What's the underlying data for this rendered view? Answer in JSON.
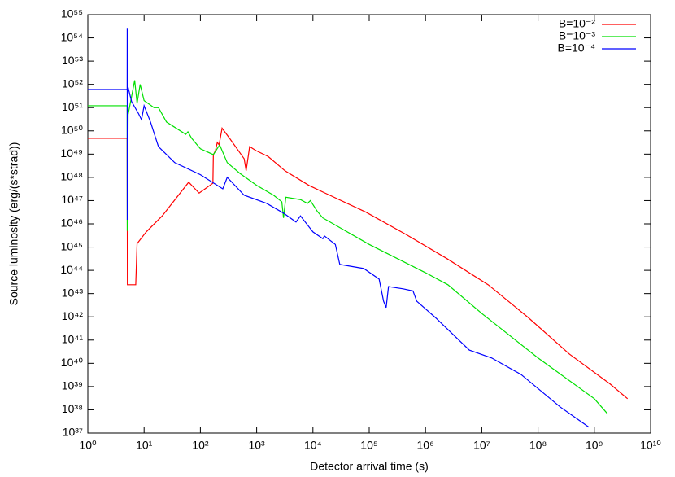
{
  "chart_data": {
    "type": "line",
    "x_label": "Detector arrival time (s)",
    "y_label": "Source luminosity (erg/(s*strad))",
    "log_x": true,
    "log_y": true,
    "legend": "top-right",
    "xlim": [
      1,
      10000000000
    ],
    "ylim": [
      1e+37,
      1e+55
    ],
    "xticks": [
      {
        "value": 1,
        "label": "10⁰"
      },
      {
        "value": 10,
        "label": "10¹"
      },
      {
        "value": 100,
        "label": "10²"
      },
      {
        "value": 1000,
        "label": "10³"
      },
      {
        "value": 10000,
        "label": "10⁴"
      },
      {
        "value": 100000,
        "label": "10⁵"
      },
      {
        "value": 1000000,
        "label": "10⁶"
      },
      {
        "value": 10000000,
        "label": "10⁷"
      },
      {
        "value": 100000000,
        "label": "10⁸"
      },
      {
        "value": 1000000000,
        "label": "10⁹"
      },
      {
        "value": 10000000000,
        "label": "10¹⁰"
      }
    ],
    "yticks": [
      {
        "value": 1e+37,
        "label": "10³⁷"
      },
      {
        "value": 1e+38,
        "label": "10³⁸"
      },
      {
        "value": 1e+39,
        "label": "10³⁹"
      },
      {
        "value": 1e+40,
        "label": "10⁴⁰"
      },
      {
        "value": 1e+41,
        "label": "10⁴¹"
      },
      {
        "value": 1e+42,
        "label": "10⁴²"
      },
      {
        "value": 1e+43,
        "label": "10⁴³"
      },
      {
        "value": 1e+44,
        "label": "10⁴⁴"
      },
      {
        "value": 1e+45,
        "label": "10⁴⁵"
      },
      {
        "value": 1e+46,
        "label": "10⁴⁶"
      },
      {
        "value": 1e+47,
        "label": "10⁴⁷"
      },
      {
        "value": 1e+48,
        "label": "10⁴⁸"
      },
      {
        "value": 1e+49,
        "label": "10⁴⁹"
      },
      {
        "value": 1e+50,
        "label": "10⁵⁰"
      },
      {
        "value": 1e+51,
        "label": "10⁵¹"
      },
      {
        "value": 1e+52,
        "label": "10⁵²"
      },
      {
        "value": 1e+53,
        "label": "10⁵³"
      },
      {
        "value": 1e+54,
        "label": "10⁵⁴"
      },
      {
        "value": 1e+55,
        "label": "10⁵⁵"
      }
    ],
    "series": [
      {
        "name": "B=10⁻²",
        "color": "#ff0000",
        "x": [
          1,
          5,
          5.05,
          7.1,
          7.5,
          10.9,
          21,
          62,
          95,
          167,
          170,
          185,
          200,
          215,
          243,
          330,
          600,
          650,
          750,
          980,
          1600,
          3200,
          8500,
          16500,
          87000,
          450000,
          2400000,
          13000000,
          67000000,
          360000000,
          1900000000,
          3900000000
        ],
        "values": [
          4.8e+49,
          4.8e+49,
          2.4e+43,
          2.4e+43,
          1.4e+45,
          4.5e+45,
          2.2e+46,
          6.2e+47,
          2.1e+47,
          5.6e+47,
          9.5e+48,
          1.4e+49,
          3.2e+49,
          2.5e+49,
          1.3e+50,
          4.8e+49,
          6.3e+48,
          1.9e+48,
          2.1e+49,
          1.4e+49,
          7.9e+48,
          1.9e+48,
          4.5e+47,
          2.1e+47,
          3.2e+46,
          3.5e+45,
          3.2e+44,
          2.4e+43,
          9.3e+41,
          2.5e+40,
          1.3e+39,
          3e+38
        ]
      },
      {
        "name": "B=10⁻³",
        "color": "#00e000",
        "x": [
          1,
          5,
          5.02,
          5.05,
          5.2,
          6.8,
          7.5,
          8.5,
          10,
          15,
          18,
          25,
          55,
          60,
          70,
          100,
          170,
          220,
          300,
          500,
          1000,
          2000,
          2800,
          3000,
          3300,
          6000,
          8000,
          9000,
          12000,
          15000,
          100000,
          1000000,
          2500000,
          10000000,
          100000000,
          1000000000,
          1700000000
        ],
        "values": [
          1.2e+51,
          1.2e+51,
          5e+45,
          1.5e+46,
          5e+50,
          1.5e+52,
          1.5e+51,
          1e+52,
          2e+51,
          1e+51,
          1e+51,
          2.4e+50,
          7.1e+49,
          9.1e+49,
          4.8e+49,
          1.7e+49,
          9.5e+48,
          2.5e+49,
          4.3e+48,
          1.5e+48,
          4.5e+47,
          1.7e+47,
          8.9e+46,
          1.8e+46,
          1.4e+47,
          1.1e+47,
          7.6e+46,
          1e+47,
          3.4e+46,
          1.8e+46,
          1.3e+45,
          7.9e+43,
          2.4e+43,
          1.4e+42,
          1.7e+40,
          3e+38,
          6.9e+37
        ]
      },
      {
        "name": "B=10⁻⁴",
        "color": "#0000ff",
        "x": [
          1,
          5,
          5.01,
          5.03,
          5.1,
          6,
          8,
          9,
          10,
          13,
          18,
          35,
          100,
          250,
          300,
          600,
          1500,
          3000,
          5000,
          6000,
          10000,
          15000,
          16000,
          25000,
          30000,
          80000,
          150000,
          180000,
          200000,
          220000,
          400000,
          600000,
          700000,
          1500000,
          6000000,
          15000000,
          50000000,
          250000000,
          800000000
        ],
        "values": [
          6e+51,
          6e+51,
          2.5e+54,
          1.5e+46,
          8.9e+51,
          1.8e+51,
          5.4e+50,
          3e+50,
          1.2e+51,
          2.4e+50,
          2.1e+49,
          4.3e+48,
          1.3e+48,
          3.2e+47,
          1e+48,
          1.7e+47,
          7.6e+46,
          2.9e+46,
          1.2e+46,
          2.2e+46,
          4.5e+45,
          2.3e+45,
          3e+45,
          1.3e+45,
          1.8e+44,
          1.2e+44,
          4.2e+43,
          4.7e+42,
          2.5e+42,
          2e+43,
          1.6e+43,
          1.3e+43,
          4.7e+42,
          9.3e+41,
          3.7e+40,
          1.7e+40,
          3.3e+39,
          1.3e+38,
          1.8e+37
        ]
      }
    ]
  }
}
